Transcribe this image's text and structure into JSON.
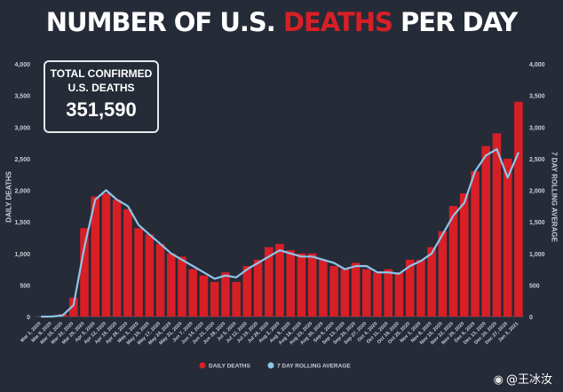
{
  "title_pre": "NUMBER OF U.S. ",
  "title_accent": "DEATHS",
  "title_post": " PER DAY",
  "total_box": {
    "line1": "TOTAL CONFIRMED",
    "line2": "U.S. DEATHS",
    "value": "351,590"
  },
  "watermark": "@王冰汝",
  "colors": {
    "background": "#262b38",
    "bars": "#d81f26",
    "rolling_line": "#8ec5ea",
    "axis_text": "#c8ccd4"
  },
  "chart_data": {
    "type": "bar",
    "ylabel_left": "DAILY DEATHS",
    "ylabel_right": "7 DAY ROLLING AVERAGE",
    "ylim": [
      0,
      4000
    ],
    "yticks": [
      0,
      500,
      1000,
      1500,
      2000,
      2500,
      3000,
      3500,
      4000
    ],
    "ytick_labels": [
      "0",
      "500",
      "1,000",
      "1,500",
      "2,000",
      "2,500",
      "3,000",
      "3,500",
      "4,000"
    ],
    "grid": false,
    "legend": "bottom-center",
    "categories": [
      "Mar 1, 2020",
      "Mar 8, 2020",
      "Mar 15, 2020",
      "Mar 22, 2020",
      "Mar 29, 2020",
      "Apr 5, 2020",
      "Apr 12, 2020",
      "Apr 19, 2020",
      "Apr 26, 2020",
      "May 3, 2020",
      "May 10, 2020",
      "May 17, 2020",
      "May 24, 2020",
      "May 31, 2020",
      "Jun 7, 2020",
      "Jun 14, 2020",
      "Jun 21, 2020",
      "Jun 28, 2020",
      "Jul 5, 2020",
      "Jul 12, 2020",
      "Jul 19, 2020",
      "Jul 26, 2020",
      "Aug 2, 2020",
      "Aug 9, 2020",
      "Aug 16, 2020",
      "Aug 23, 2020",
      "Aug 30, 2020",
      "Sep 6, 2020",
      "Sep 13, 2020",
      "Sep 20, 2020",
      "Sep 27, 2020",
      "Oct 4, 2020",
      "Oct 11, 2020",
      "Oct 18, 2020",
      "Oct 25, 2020",
      "Nov 1, 2020",
      "Nov 8, 2020",
      "Nov 15, 2020",
      "Nov 22, 2020",
      "Nov 29, 2020",
      "Dec 6, 2020",
      "Dec 13, 2020",
      "Dec 20, 2020",
      "Dec 27, 2020",
      "Jan 3, 2021"
    ],
    "series": [
      {
        "name": "DAILY DEATHS",
        "kind": "bar",
        "values": [
          0,
          5,
          40,
          300,
          1400,
          1900,
          1950,
          1850,
          1700,
          1400,
          1300,
          1150,
          1000,
          950,
          750,
          650,
          550,
          700,
          550,
          800,
          900,
          1100,
          1150,
          1050,
          1000,
          1000,
          900,
          800,
          750,
          850,
          750,
          700,
          750,
          700,
          900,
          900,
          1100,
          1350,
          1750,
          1950,
          2300,
          2700,
          2900,
          2500,
          3400
        ]
      },
      {
        "name": "7 DAY ROLLING AVERAGE",
        "kind": "line",
        "values": [
          0,
          2,
          20,
          180,
          1100,
          1850,
          2000,
          1850,
          1750,
          1450,
          1300,
          1150,
          1000,
          900,
          800,
          700,
          600,
          650,
          620,
          750,
          850,
          950,
          1050,
          1000,
          950,
          950,
          900,
          850,
          750,
          800,
          800,
          700,
          700,
          680,
          800,
          880,
          1000,
          1300,
          1600,
          1800,
          2300,
          2550,
          2650,
          2200,
          2600
        ]
      }
    ]
  }
}
